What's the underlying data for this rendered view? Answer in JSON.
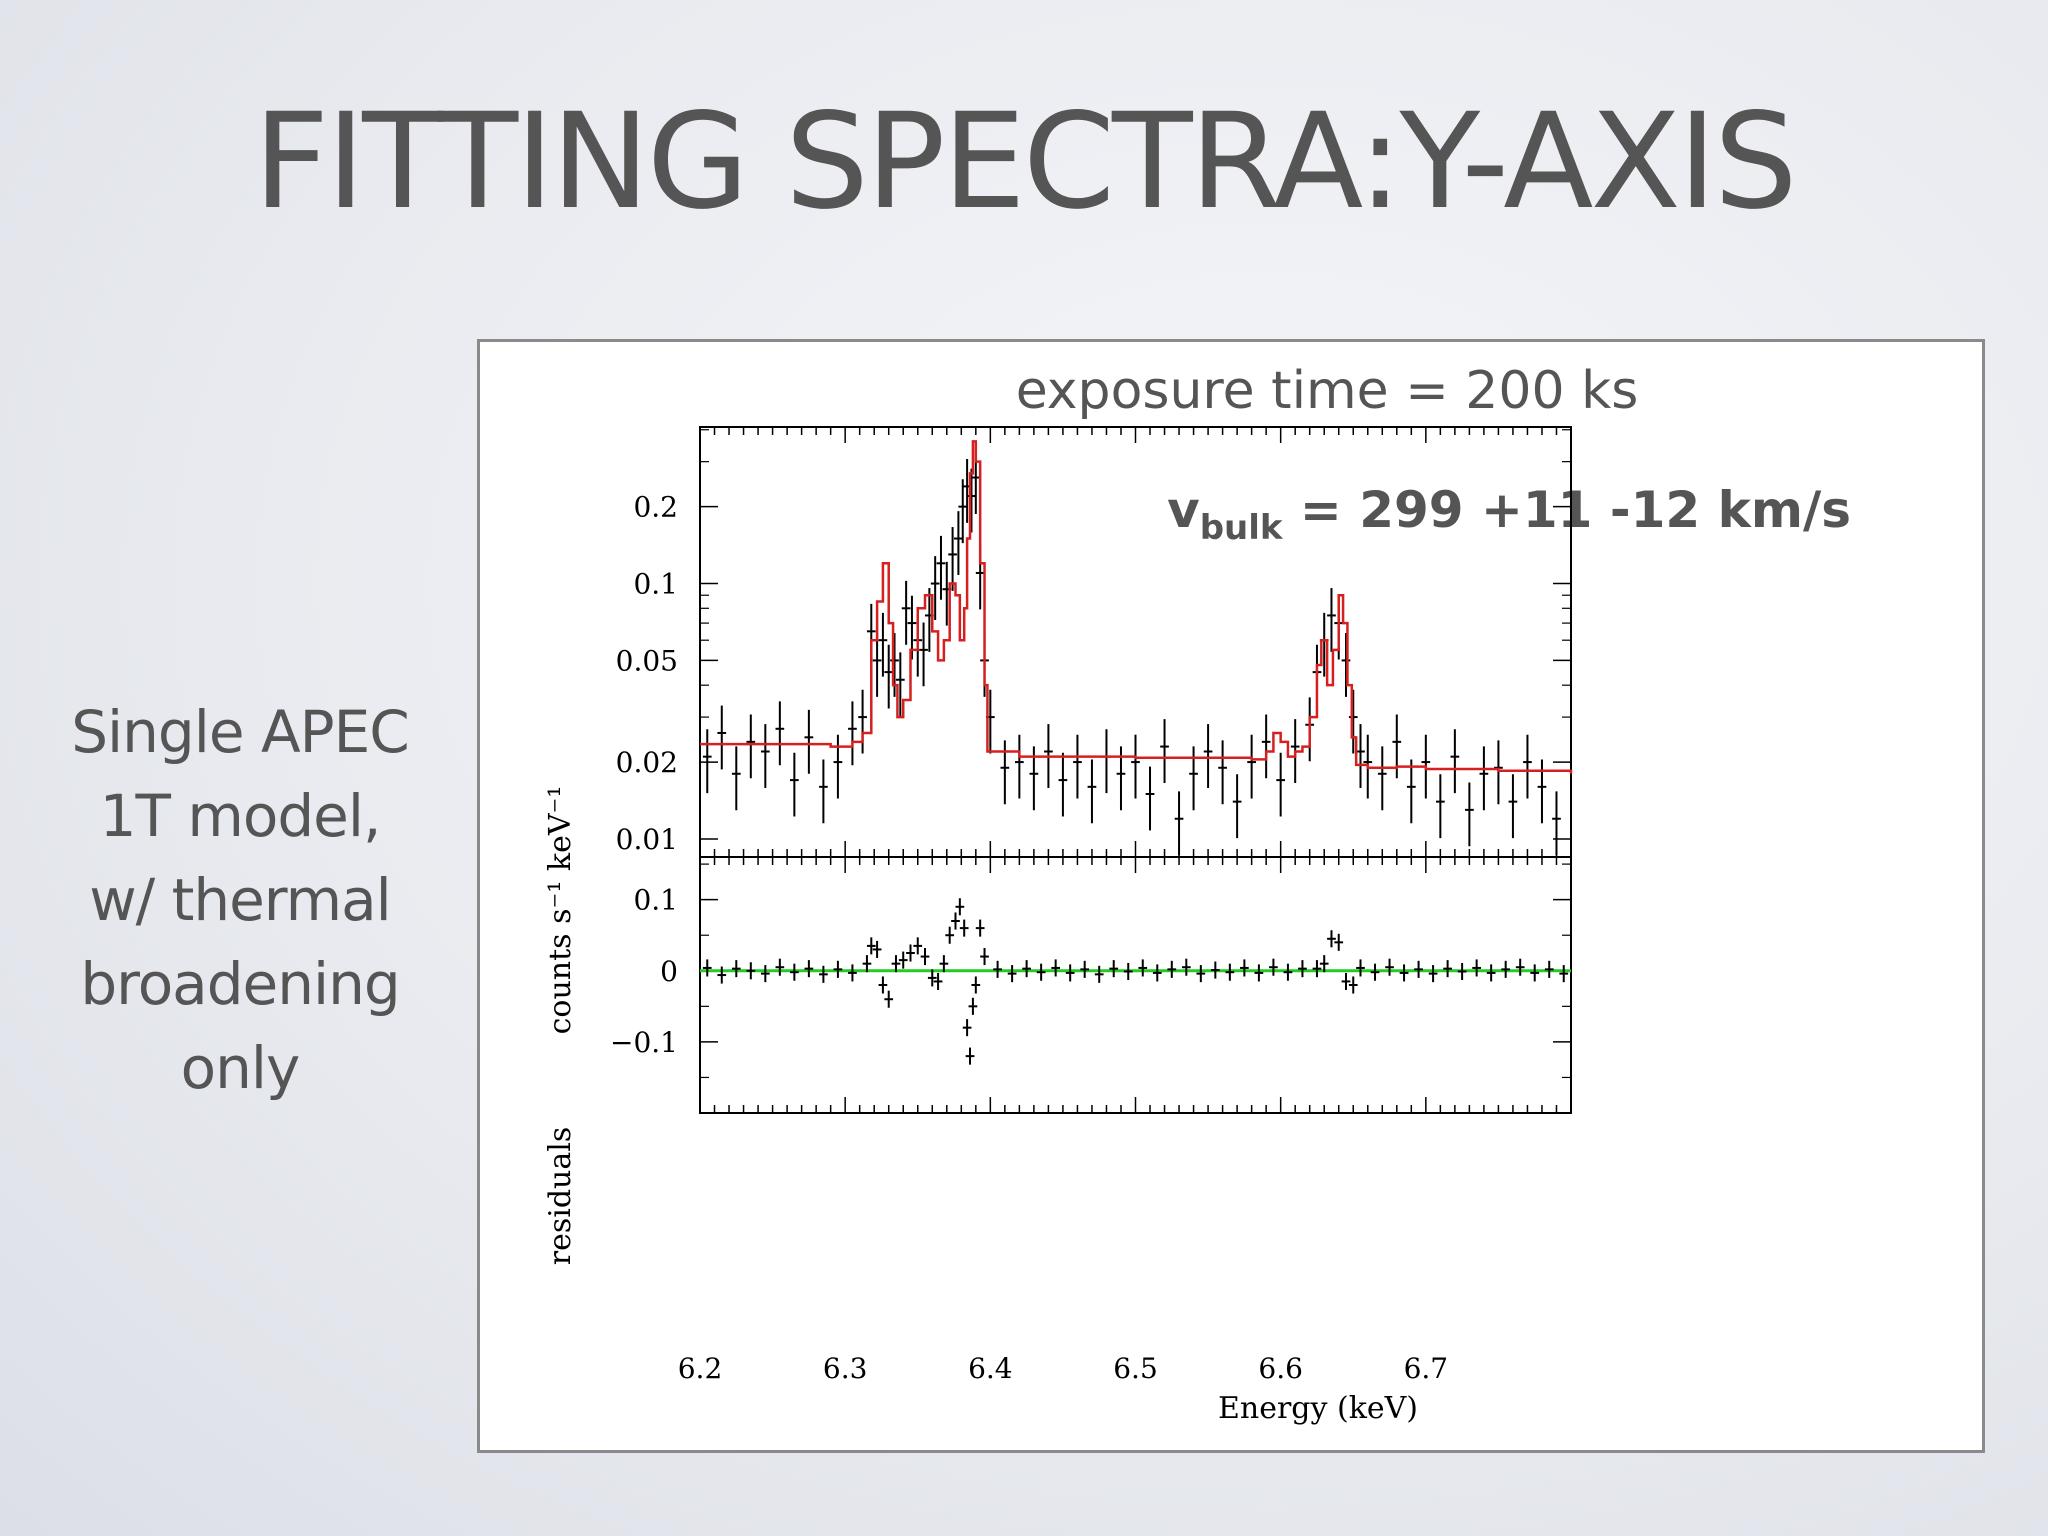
{
  "slide": {
    "title": "FITTING SPECTRA:Y-AXIS",
    "side_text": [
      "Single APEC",
      "1T model,",
      "w/ thermal",
      "broadening",
      "only"
    ]
  },
  "chart_data": {
    "type": "line",
    "title": "exposure time = 200 ks",
    "annotation": {
      "main": "v",
      "sub": "bulk",
      "rest": " = 299 +11 -12 km/s"
    },
    "xlabel": "Energy (keV)",
    "xlim": [
      6.2,
      6.8
    ],
    "xticks": [
      "6.2",
      "6.3",
      "6.4",
      "6.5",
      "6.6",
      "6.7"
    ],
    "colors": {
      "model": "#d62020",
      "zero_line": "#22cc22",
      "data": "#000000"
    },
    "panels": [
      {
        "name": "spectrum",
        "ylabel": "counts s⁻¹ keV⁻¹",
        "yscale": "log",
        "ylim": [
          0.0085,
          0.41
        ],
        "yticks": [
          {
            "v": 0.01,
            "label": "0.01"
          },
          {
            "v": 0.02,
            "label": "0.02"
          },
          {
            "v": 0.05,
            "label": "0.05"
          },
          {
            "v": 0.1,
            "label": "0.1"
          },
          {
            "v": 0.2,
            "label": "0.2"
          }
        ],
        "model": {
          "name": "model",
          "x": [
            6.2,
            6.26,
            6.29,
            6.305,
            6.312,
            6.318,
            6.322,
            6.326,
            6.33,
            6.333,
            6.336,
            6.34,
            6.345,
            6.35,
            6.355,
            6.36,
            6.364,
            6.368,
            6.372,
            6.376,
            6.379,
            6.382,
            6.384,
            6.386,
            6.388,
            6.39,
            6.393,
            6.396,
            6.398,
            6.42,
            6.5,
            6.58,
            6.59,
            6.595,
            6.6,
            6.605,
            6.61,
            6.615,
            6.62,
            6.625,
            6.628,
            6.632,
            6.636,
            6.64,
            6.643,
            6.646,
            6.649,
            6.652,
            6.66,
            6.68,
            6.7,
            6.75,
            6.8
          ],
          "y": [
            0.0235,
            0.0235,
            0.023,
            0.024,
            0.026,
            0.06,
            0.085,
            0.12,
            0.07,
            0.04,
            0.03,
            0.035,
            0.055,
            0.08,
            0.09,
            0.065,
            0.05,
            0.06,
            0.1,
            0.09,
            0.06,
            0.08,
            0.15,
            0.27,
            0.36,
            0.3,
            0.12,
            0.04,
            0.022,
            0.021,
            0.0208,
            0.0205,
            0.022,
            0.026,
            0.024,
            0.021,
            0.022,
            0.023,
            0.03,
            0.048,
            0.06,
            0.04,
            0.055,
            0.09,
            0.07,
            0.04,
            0.025,
            0.0195,
            0.019,
            0.0192,
            0.0188,
            0.0185,
            0.018
          ]
        },
        "data": {
          "x": [
            6.205,
            6.215,
            6.225,
            6.235,
            6.245,
            6.255,
            6.265,
            6.275,
            6.285,
            6.295,
            6.305,
            6.312,
            6.318,
            6.322,
            6.326,
            6.33,
            6.334,
            6.338,
            6.342,
            6.346,
            6.35,
            6.354,
            6.358,
            6.362,
            6.366,
            6.37,
            6.374,
            6.378,
            6.381,
            6.384,
            6.387,
            6.39,
            6.393,
            6.396,
            6.4,
            6.41,
            6.42,
            6.43,
            6.44,
            6.45,
            6.46,
            6.47,
            6.48,
            6.49,
            6.5,
            6.51,
            6.52,
            6.53,
            6.54,
            6.55,
            6.56,
            6.57,
            6.58,
            6.59,
            6.6,
            6.61,
            6.62,
            6.625,
            6.63,
            6.635,
            6.64,
            6.645,
            6.65,
            6.655,
            6.66,
            6.67,
            6.68,
            6.69,
            6.7,
            6.71,
            6.72,
            6.73,
            6.74,
            6.75,
            6.76,
            6.77,
            6.78,
            6.79
          ],
          "y": [
            0.021,
            0.026,
            0.018,
            0.024,
            0.022,
            0.027,
            0.017,
            0.025,
            0.016,
            0.02,
            0.027,
            0.03,
            0.065,
            0.05,
            0.06,
            0.045,
            0.05,
            0.042,
            0.08,
            0.07,
            0.06,
            0.055,
            0.075,
            0.1,
            0.12,
            0.095,
            0.13,
            0.15,
            0.2,
            0.24,
            0.22,
            0.26,
            0.11,
            0.05,
            0.03,
            0.019,
            0.02,
            0.018,
            0.022,
            0.017,
            0.02,
            0.016,
            0.021,
            0.018,
            0.02,
            0.015,
            0.023,
            0.012,
            0.018,
            0.022,
            0.019,
            0.014,
            0.02,
            0.024,
            0.017,
            0.023,
            0.028,
            0.045,
            0.06,
            0.075,
            0.07,
            0.05,
            0.03,
            0.022,
            0.02,
            0.018,
            0.024,
            0.016,
            0.02,
            0.014,
            0.021,
            0.013,
            0.018,
            0.019,
            0.014,
            0.02,
            0.016,
            0.012
          ],
          "xerr": 0.003,
          "yerr_frac": 0.28
        }
      },
      {
        "name": "residuals",
        "ylabel": "residuals",
        "yscale": "linear",
        "ylim": [
          -0.2,
          0.16
        ],
        "yticks": [
          {
            "v": -0.1,
            "label": "−0.1"
          },
          {
            "v": 0,
            "label": "0"
          },
          {
            "v": 0.1,
            "label": "0.1"
          }
        ],
        "zero_line": [
          0,
          0
        ],
        "data": {
          "x": [
            6.205,
            6.215,
            6.225,
            6.235,
            6.245,
            6.255,
            6.265,
            6.275,
            6.285,
            6.295,
            6.305,
            6.315,
            6.318,
            6.322,
            6.326,
            6.33,
            6.335,
            6.34,
            6.345,
            6.35,
            6.355,
            6.36,
            6.364,
            6.368,
            6.372,
            6.376,
            6.379,
            6.382,
            6.384,
            6.386,
            6.388,
            6.39,
            6.393,
            6.396,
            6.405,
            6.415,
            6.425,
            6.435,
            6.445,
            6.455,
            6.465,
            6.475,
            6.485,
            6.495,
            6.505,
            6.515,
            6.525,
            6.535,
            6.545,
            6.555,
            6.565,
            6.575,
            6.585,
            6.595,
            6.605,
            6.615,
            6.625,
            6.63,
            6.635,
            6.64,
            6.645,
            6.65,
            6.655,
            6.665,
            6.675,
            6.685,
            6.695,
            6.705,
            6.715,
            6.725,
            6.735,
            6.745,
            6.755,
            6.765,
            6.775,
            6.785,
            6.795
          ],
          "y": [
            0.004,
            -0.006,
            0.003,
            0.0,
            -0.004,
            0.005,
            -0.002,
            0.003,
            -0.005,
            0.002,
            -0.003,
            0.01,
            0.035,
            0.03,
            -0.02,
            -0.04,
            0.01,
            0.015,
            0.025,
            0.035,
            0.02,
            -0.01,
            -0.015,
            0.01,
            0.05,
            0.07,
            0.09,
            0.06,
            -0.08,
            -0.12,
            -0.05,
            -0.02,
            0.06,
            0.02,
            0.002,
            -0.004,
            0.003,
            -0.002,
            0.004,
            -0.003,
            0.002,
            -0.005,
            0.003,
            -0.001,
            0.004,
            -0.003,
            0.002,
            0.005,
            -0.004,
            0.001,
            -0.002,
            0.004,
            -0.003,
            0.005,
            -0.002,
            0.003,
            0.003,
            0.01,
            0.045,
            0.04,
            -0.015,
            -0.02,
            0.004,
            -0.002,
            0.005,
            -0.003,
            0.002,
            -0.004,
            0.003,
            -0.001,
            0.004,
            -0.003,
            0.002,
            0.005,
            -0.003,
            0.002,
            -0.004
          ],
          "xerr": 0.003,
          "yerr": 0.012
        }
      }
    ]
  }
}
